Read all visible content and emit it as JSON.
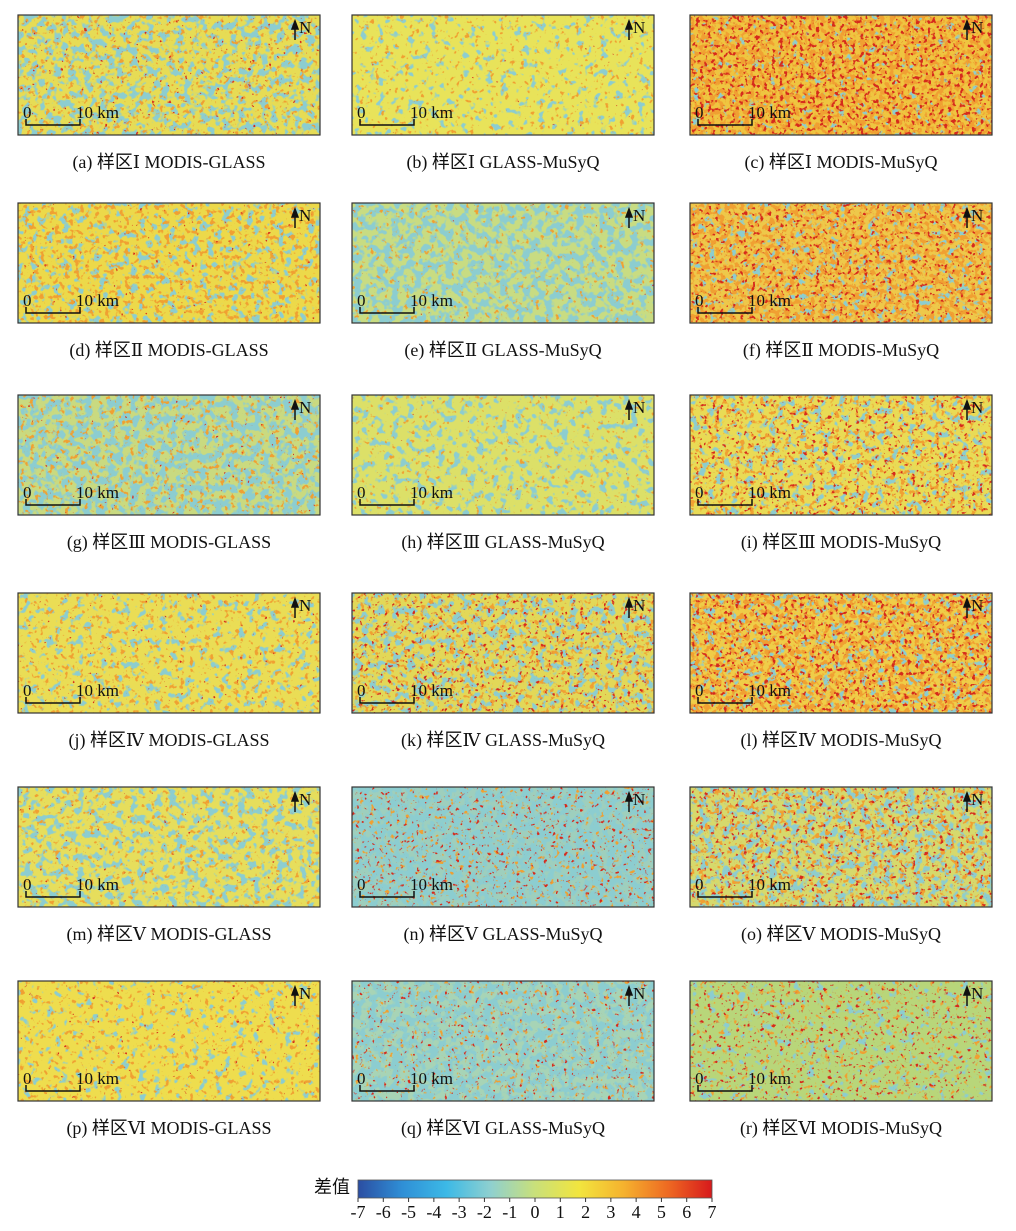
{
  "panels": [
    {
      "caption": "(a) 样区Ⅰ MODIS-GLASS",
      "scale_start": "0",
      "scale_end": "10 km",
      "north": "N"
    },
    {
      "caption": "(b) 样区Ⅰ GLASS-MuSyQ",
      "scale_start": "0",
      "scale_end": "10 km",
      "north": "N"
    },
    {
      "caption": "(c) 样区Ⅰ MODIS-MuSyQ",
      "scale_start": "0",
      "scale_end": "10 km",
      "north": "N"
    },
    {
      "caption": "(d) 样区Ⅱ MODIS-GLASS",
      "scale_start": "0",
      "scale_end": "10 km",
      "north": "N"
    },
    {
      "caption": "(e) 样区Ⅱ GLASS-MuSyQ",
      "scale_start": "0",
      "scale_end": "10 km",
      "north": "N"
    },
    {
      "caption": "(f) 样区Ⅱ MODIS-MuSyQ",
      "scale_start": "0",
      "scale_end": "10 km",
      "north": "N"
    },
    {
      "caption": "(g) 样区Ⅲ MODIS-GLASS",
      "scale_start": "0",
      "scale_end": "10 km",
      "north": "N"
    },
    {
      "caption": "(h) 样区Ⅲ GLASS-MuSyQ",
      "scale_start": "0",
      "scale_end": "10 km",
      "north": "N"
    },
    {
      "caption": "(i) 样区Ⅲ MODIS-MuSyQ",
      "scale_start": "0",
      "scale_end": "10 km",
      "north": "N"
    },
    {
      "caption": "(j) 样区Ⅳ MODIS-GLASS",
      "scale_start": "0",
      "scale_end": "10 km",
      "north": "N"
    },
    {
      "caption": "(k) 样区Ⅳ GLASS-MuSyQ",
      "scale_start": "0",
      "scale_end": "10 km",
      "north": "N"
    },
    {
      "caption": "(l) 样区Ⅳ MODIS-MuSyQ",
      "scale_start": "0",
      "scale_end": "10 km",
      "north": "N"
    },
    {
      "caption": "(m) 样区Ⅴ MODIS-GLASS",
      "scale_start": "0",
      "scale_end": "10 km",
      "north": "N"
    },
    {
      "caption": "(n) 样区Ⅴ GLASS-MuSyQ",
      "scale_start": "0",
      "scale_end": "10 km",
      "north": "N"
    },
    {
      "caption": "(o) 样区Ⅴ MODIS-MuSyQ",
      "scale_start": "0",
      "scale_end": "10 km",
      "north": "N"
    },
    {
      "caption": "(p) 样区Ⅵ MODIS-GLASS",
      "scale_start": "0",
      "scale_end": "10 km",
      "north": "N"
    },
    {
      "caption": "(q) 样区Ⅵ GLASS-MuSyQ",
      "scale_start": "0",
      "scale_end": "10 km",
      "north": "N"
    },
    {
      "caption": "(r) 样区Ⅵ MODIS-MuSyQ",
      "scale_start": "0",
      "scale_end": "10 km",
      "north": "N"
    }
  ],
  "colorbar": {
    "label": "差值",
    "range": [
      -7,
      7
    ],
    "ticks": [
      -7,
      -6,
      -5,
      -4,
      -3,
      -2,
      -1,
      0,
      1,
      2,
      3,
      4,
      5,
      6,
      7
    ],
    "colors": [
      "#2b4ea2",
      "#2f8fd6",
      "#3cb9e6",
      "#8fd0cf",
      "#c9e07a",
      "#f2e53e",
      "#f5b22e",
      "#ee6a22",
      "#d7191c"
    ]
  }
}
